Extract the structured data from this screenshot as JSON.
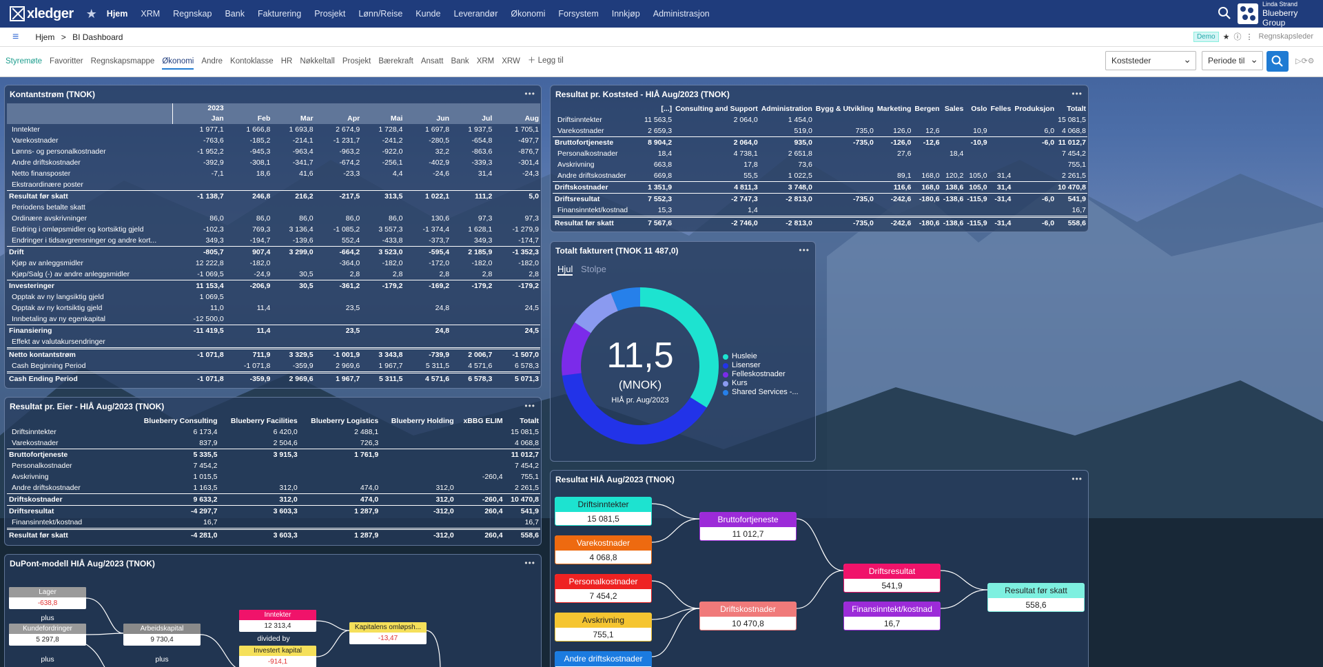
{
  "nav": {
    "logo": "xledger",
    "menu": [
      "Hjem",
      "XRM",
      "Regnskap",
      "Bank",
      "Fakturering",
      "Prosjekt",
      "Lønn/Reise",
      "Kunde",
      "Leverandør",
      "Økonomi",
      "Forsystem",
      "Innkjøp",
      "Administrasjon"
    ],
    "user": "Linda Strand",
    "company": "Blueberry Group"
  },
  "breadcrumb": {
    "home": "Hjem",
    "sep": ">",
    "current": "BI Dashboard",
    "demo": "Demo",
    "role": "Regnskapsleder"
  },
  "tabs": [
    "Styremøte",
    "Favoritter",
    "Regnskapsmappe",
    "Økonomi",
    "Andre",
    "Kontoklasse",
    "HR",
    "Nøkkeltall",
    "Prosjekt",
    "Bærekraft",
    "Ansatt",
    "Bank",
    "XRM",
    "XRW"
  ],
  "tab_add": "Legg til",
  "filters": {
    "koststeder": "Koststeder",
    "periode": "Periode til"
  },
  "colors": {
    "nav": "#1f3c7c",
    "accent": "#1f7bd3",
    "teal": "#1e9e8e"
  },
  "kontantstrom": {
    "title": "Kontantstrøm (TNOK)",
    "year": "2023",
    "months": [
      "Jan",
      "Feb",
      "Mar",
      "Apr",
      "Mai",
      "Jun",
      "Jul",
      "Aug"
    ],
    "rows": [
      {
        "label": "Inntekter",
        "v": [
          "1 977,1",
          "1 666,8",
          "1 693,8",
          "2 674,9",
          "1 728,4",
          "1 697,8",
          "1 937,5",
          "1 705,1"
        ]
      },
      {
        "label": "Varekostnader",
        "v": [
          "-763,6",
          "-185,2",
          "-214,1",
          "-1 231,7",
          "-241,2",
          "-280,5",
          "-654,8",
          "-497,7"
        ]
      },
      {
        "label": "Lønns- og personalkostnader",
        "v": [
          "-1 952,2",
          "-945,3",
          "-963,4",
          "-963,2",
          "-922,0",
          "32,2",
          "-863,6",
          "-876,7"
        ]
      },
      {
        "label": "Andre driftskostnader",
        "v": [
          "-392,9",
          "-308,1",
          "-341,7",
          "-674,2",
          "-256,1",
          "-402,9",
          "-339,3",
          "-301,4"
        ]
      },
      {
        "label": "Netto finansposter",
        "v": [
          "-7,1",
          "18,6",
          "41,6",
          "-23,3",
          "4,4",
          "-24,6",
          "31,4",
          "-24,3"
        ]
      },
      {
        "label": "Ekstraordinære poster",
        "v": [
          "",
          "",
          "",
          "",
          "",
          "",
          "",
          ""
        ]
      },
      {
        "label": "Resultat før skatt",
        "bold": true,
        "sep": true,
        "v": [
          "-1 138,7",
          "246,8",
          "216,2",
          "-217,5",
          "313,5",
          "1 022,1",
          "111,2",
          "5,0"
        ]
      },
      {
        "label": "Periodens betalte skatt",
        "v": [
          "",
          "",
          "",
          "",
          "",
          "",
          "",
          ""
        ]
      },
      {
        "label": "Ordinære avskrivninger",
        "v": [
          "86,0",
          "86,0",
          "86,0",
          "86,0",
          "86,0",
          "130,6",
          "97,3",
          "97,3"
        ]
      },
      {
        "label": "Endring i omløpsmidler og kortsiktig gjeld",
        "v": [
          "-102,3",
          "769,3",
          "3 136,4",
          "-1 085,2",
          "3 557,3",
          "-1 374,4",
          "1 628,1",
          "-1 279,9"
        ]
      },
      {
        "label": "Endringer i tidsavgrensninger og andre kort...",
        "v": [
          "349,3",
          "-194,7",
          "-139,6",
          "552,4",
          "-433,8",
          "-373,7",
          "349,3",
          "-174,7"
        ]
      },
      {
        "label": "Drift",
        "bold": true,
        "sep": true,
        "v": [
          "-805,7",
          "907,4",
          "3 299,0",
          "-664,2",
          "3 523,0",
          "-595,4",
          "2 185,9",
          "-1 352,3"
        ]
      },
      {
        "label": "Kjøp av anleggsmidler",
        "v": [
          "12 222,8",
          "-182,0",
          "",
          "-364,0",
          "-182,0",
          "-172,0",
          "-182,0",
          "-182,0"
        ]
      },
      {
        "label": "Kjøp/Salg (-) av andre anleggsmidler",
        "v": [
          "-1 069,5",
          "-24,9",
          "30,5",
          "2,8",
          "2,8",
          "2,8",
          "2,8",
          "2,8"
        ]
      },
      {
        "label": "Investeringer",
        "bold": true,
        "sep": true,
        "v": [
          "11 153,4",
          "-206,9",
          "30,5",
          "-361,2",
          "-179,2",
          "-169,2",
          "-179,2",
          "-179,2"
        ]
      },
      {
        "label": "Opptak av ny langsiktig gjeld",
        "v": [
          "1 069,5",
          "",
          "",
          "",
          "",
          "",
          "",
          ""
        ]
      },
      {
        "label": "Opptak av ny kortsiktig gjeld",
        "v": [
          "11,0",
          "11,4",
          "",
          "23,5",
          "",
          "24,8",
          "",
          "24,5"
        ]
      },
      {
        "label": "Innbetaling av ny egenkapital",
        "v": [
          "-12 500,0",
          "",
          "",
          "",
          "",
          "",
          "",
          ""
        ]
      },
      {
        "label": "Finansiering",
        "bold": true,
        "sep": true,
        "v": [
          "-11 419,5",
          "11,4",
          "",
          "23,5",
          "",
          "24,8",
          "",
          "24,5"
        ]
      },
      {
        "label": "Effekt av valutakursendringer",
        "v": [
          "",
          "",
          "",
          "",
          "",
          "",
          "",
          ""
        ]
      },
      {
        "label": "Netto kontantstrøm",
        "bold": true,
        "sep2": true,
        "v": [
          "-1 071,8",
          "711,9",
          "3 329,5",
          "-1 001,9",
          "3 343,8",
          "-739,9",
          "2 006,7",
          "-1 507,0"
        ]
      },
      {
        "label": "Cash Beginning Period",
        "v": [
          "",
          "-1 071,8",
          "-359,9",
          "2 969,6",
          "1 967,7",
          "5 311,5",
          "4 571,6",
          "6 578,3"
        ]
      },
      {
        "label": "Cash Ending Period",
        "bold": true,
        "sep2": true,
        "v": [
          "-1 071,8",
          "-359,9",
          "2 969,6",
          "1 967,7",
          "5 311,5",
          "4 571,6",
          "6 578,3",
          "5 071,3"
        ]
      }
    ]
  },
  "eier": {
    "title": "Resultat pr. Eier - HIÅ Aug/2023 (TNOK)",
    "cols": [
      "Blueberry Consulting",
      "Blueberry Facilities",
      "Blueberry Logistics",
      "Blueberry Holding",
      "xBBG ELIM",
      "Totalt"
    ],
    "rows": [
      {
        "label": "Driftsinntekter",
        "v": [
          "6 173,4",
          "6 420,0",
          "2 488,1",
          "",
          "",
          "15 081,5"
        ]
      },
      {
        "label": "Varekostnader",
        "v": [
          "837,9",
          "2 504,6",
          "726,3",
          "",
          "",
          "4 068,8"
        ]
      },
      {
        "label": "Bruttofortjeneste",
        "bold": true,
        "sep": true,
        "v": [
          "5 335,5",
          "3 915,3",
          "1 761,9",
          "",
          "",
          "11 012,7"
        ]
      },
      {
        "label": "Personalkostnader",
        "v": [
          "7 454,2",
          "",
          "",
          "",
          "",
          "7 454,2"
        ]
      },
      {
        "label": "Avskrivning",
        "v": [
          "1 015,5",
          "",
          "",
          "",
          "-260,4",
          "755,1"
        ]
      },
      {
        "label": "Andre driftskostnader",
        "v": [
          "1 163,5",
          "312,0",
          "474,0",
          "312,0",
          "",
          "2 261,5"
        ]
      },
      {
        "label": "Driftskostnader",
        "bold": true,
        "sep": true,
        "v": [
          "9 633,2",
          "312,0",
          "474,0",
          "312,0",
          "-260,4",
          "10 470,8"
        ]
      },
      {
        "label": "Driftsresultat",
        "bold": true,
        "sep": true,
        "v": [
          "-4 297,7",
          "3 603,3",
          "1 287,9",
          "-312,0",
          "260,4",
          "541,9"
        ]
      },
      {
        "label": "Finansinntekt/kostnad",
        "v": [
          "16,7",
          "",
          "",
          "",
          "",
          "16,7"
        ]
      },
      {
        "label": "Resultat før skatt",
        "bold": true,
        "sep2": true,
        "v": [
          "-4 281,0",
          "3 603,3",
          "1 287,9",
          "-312,0",
          "260,4",
          "558,6"
        ]
      }
    ]
  },
  "koststed": {
    "title": "Resultat pr. Koststed - HIÅ Aug/2023 (TNOK)",
    "cols": [
      "[...]",
      "Consulting and Support",
      "Administration",
      "Bygg & Utvikling",
      "Marketing",
      "Bergen",
      "Sales",
      "Oslo",
      "Felles",
      "Produksjon",
      "Totalt"
    ],
    "rows": [
      {
        "label": "Driftsinntekter",
        "v": [
          "11 563,5",
          "2 064,0",
          "1 454,0",
          "",
          "",
          "",
          "",
          "",
          "",
          "",
          "15 081,5"
        ]
      },
      {
        "label": "Varekostnader",
        "v": [
          "2 659,3",
          "",
          "519,0",
          "735,0",
          "126,0",
          "12,6",
          "",
          "10,9",
          "",
          "6,0",
          "4 068,8"
        ]
      },
      {
        "label": "Bruttofortjeneste",
        "bold": true,
        "sep": true,
        "v": [
          "8 904,2",
          "2 064,0",
          "935,0",
          "-735,0",
          "-126,0",
          "-12,6",
          "",
          "-10,9",
          "",
          "-6,0",
          "11 012,7"
        ]
      },
      {
        "label": "Personalkostnader",
        "v": [
          "18,4",
          "4 738,1",
          "2 651,8",
          "",
          "27,6",
          "",
          "18,4",
          "",
          "",
          "",
          "7 454,2"
        ]
      },
      {
        "label": "Avskrivning",
        "v": [
          "663,8",
          "17,8",
          "73,6",
          "",
          "",
          "",
          "",
          "",
          "",
          "",
          "755,1"
        ]
      },
      {
        "label": "Andre driftskostnader",
        "v": [
          "669,8",
          "55,5",
          "1 022,5",
          "",
          "89,1",
          "168,0",
          "120,2",
          "105,0",
          "31,4",
          "",
          "2 261,5"
        ]
      },
      {
        "label": "Driftskostnader",
        "bold": true,
        "sep": true,
        "v": [
          "1 351,9",
          "4 811,3",
          "3 748,0",
          "",
          "116,6",
          "168,0",
          "138,6",
          "105,0",
          "31,4",
          "",
          "10 470,8"
        ]
      },
      {
        "label": "Driftsresultat",
        "bold": true,
        "sep": true,
        "v": [
          "7 552,3",
          "-2 747,3",
          "-2 813,0",
          "-735,0",
          "-242,6",
          "-180,6",
          "-138,6",
          "-115,9",
          "-31,4",
          "-6,0",
          "541,9"
        ]
      },
      {
        "label": "Finansinntekt/kostnad",
        "v": [
          "15,3",
          "1,4",
          "",
          "",
          "",
          "",
          "",
          "",
          "",
          "",
          "16,7"
        ]
      },
      {
        "label": "Resultat før skatt",
        "bold": true,
        "sep2": true,
        "v": [
          "7 567,6",
          "-2 746,0",
          "-2 813,0",
          "-735,0",
          "-242,6",
          "-180,6",
          "-138,6",
          "-115,9",
          "-31,4",
          "-6,0",
          "558,6"
        ]
      }
    ]
  },
  "fakturert": {
    "title": "Totalt fakturert (TNOK 11 487,0)",
    "tab_active": "Hjul",
    "tab_other": "Stolpe",
    "center_value": "11,5",
    "center_unit": "(MNOK)",
    "center_sub": "HIÅ pr. Aug/2023",
    "legend": [
      "Husleie",
      "Lisenser",
      "Felleskostnader",
      "Kurs",
      "Shared Services -..."
    ]
  },
  "chart_data": {
    "type": "pie",
    "segments": [
      {
        "value": 3.9,
        "color": "#1de3d0"
      },
      {
        "value": 4.5,
        "color": "#2233e8"
      },
      {
        "value": 1.3,
        "color": "#7b2bea"
      },
      {
        "value": 1.1,
        "color": "#8a9af0"
      },
      {
        "value": 0.7,
        "color": "#2680ea"
      }
    ]
  },
  "resultat": {
    "title": "Resultat HIÅ Aug/2023 (TNOK)",
    "nodes": [
      {
        "id": "driftsinntekter",
        "label": "Driftsinntekter",
        "value": "15 081,5",
        "color": "#1de3d0"
      },
      {
        "id": "varekostnader",
        "label": "Varekostnader",
        "value": "4 068,8",
        "color": "#ee6a10"
      },
      {
        "id": "personalkostnader",
        "label": "Personalkostnader",
        "value": "7 454,2",
        "color": "#ee2222"
      },
      {
        "id": "avskrivning",
        "label": "Avskrivning",
        "value": "755,1",
        "color": "#f5c531"
      },
      {
        "id": "andre",
        "label": "Andre driftskostnader",
        "value": "",
        "color": "#1b7be0"
      },
      {
        "id": "bruttofortjeneste",
        "label": "Bruttofortjeneste",
        "value": "11 012,7",
        "color": "#9c2bd8"
      },
      {
        "id": "driftskostnader",
        "label": "Driftskostnader",
        "value": "10 470,8",
        "color": "#f07a7a"
      },
      {
        "id": "driftsresultat",
        "label": "Driftsresultat",
        "value": "541,9",
        "color": "#f0136a"
      },
      {
        "id": "finans",
        "label": "Finansinntekt/kostnad",
        "value": "16,7",
        "color": "#9c2bd8"
      },
      {
        "id": "resultat",
        "label": "Resultat før skatt",
        "value": "558,6",
        "color": "#7ef0e0"
      }
    ]
  },
  "dupont": {
    "title": "DuPont-modell HIÅ Aug/2023 (TNOK)",
    "nodes": [
      {
        "id": "lager",
        "label": "Lager",
        "value": "-638,8",
        "color": "#9a9a9a",
        "neg": true
      },
      {
        "id": "kundefordringer",
        "label": "Kundefordringer",
        "value": "5 297,8",
        "color": "#9a9a9a",
        "neg": false
      },
      {
        "id": "arbeidskapital",
        "label": "Arbeidskapital",
        "value": "9 730,4",
        "color": "#8a8a8a",
        "neg": false
      },
      {
        "id": "inntekter",
        "label": "Inntekter",
        "value": "12 313,4",
        "color": "#f0136a",
        "neg": false
      },
      {
        "id": "investert",
        "label": "Investert kapital",
        "value": "-914,1",
        "color": "#f5e05a",
        "neg": true
      },
      {
        "id": "kapitalens",
        "label": "Kapitalens omløpsh...",
        "value": "-13,47",
        "color": "#f5e05a",
        "neg": true
      }
    ],
    "labels": {
      "plus1": "plus",
      "plus2": "plus",
      "plus3": "plus",
      "divided": "divided by"
    }
  }
}
